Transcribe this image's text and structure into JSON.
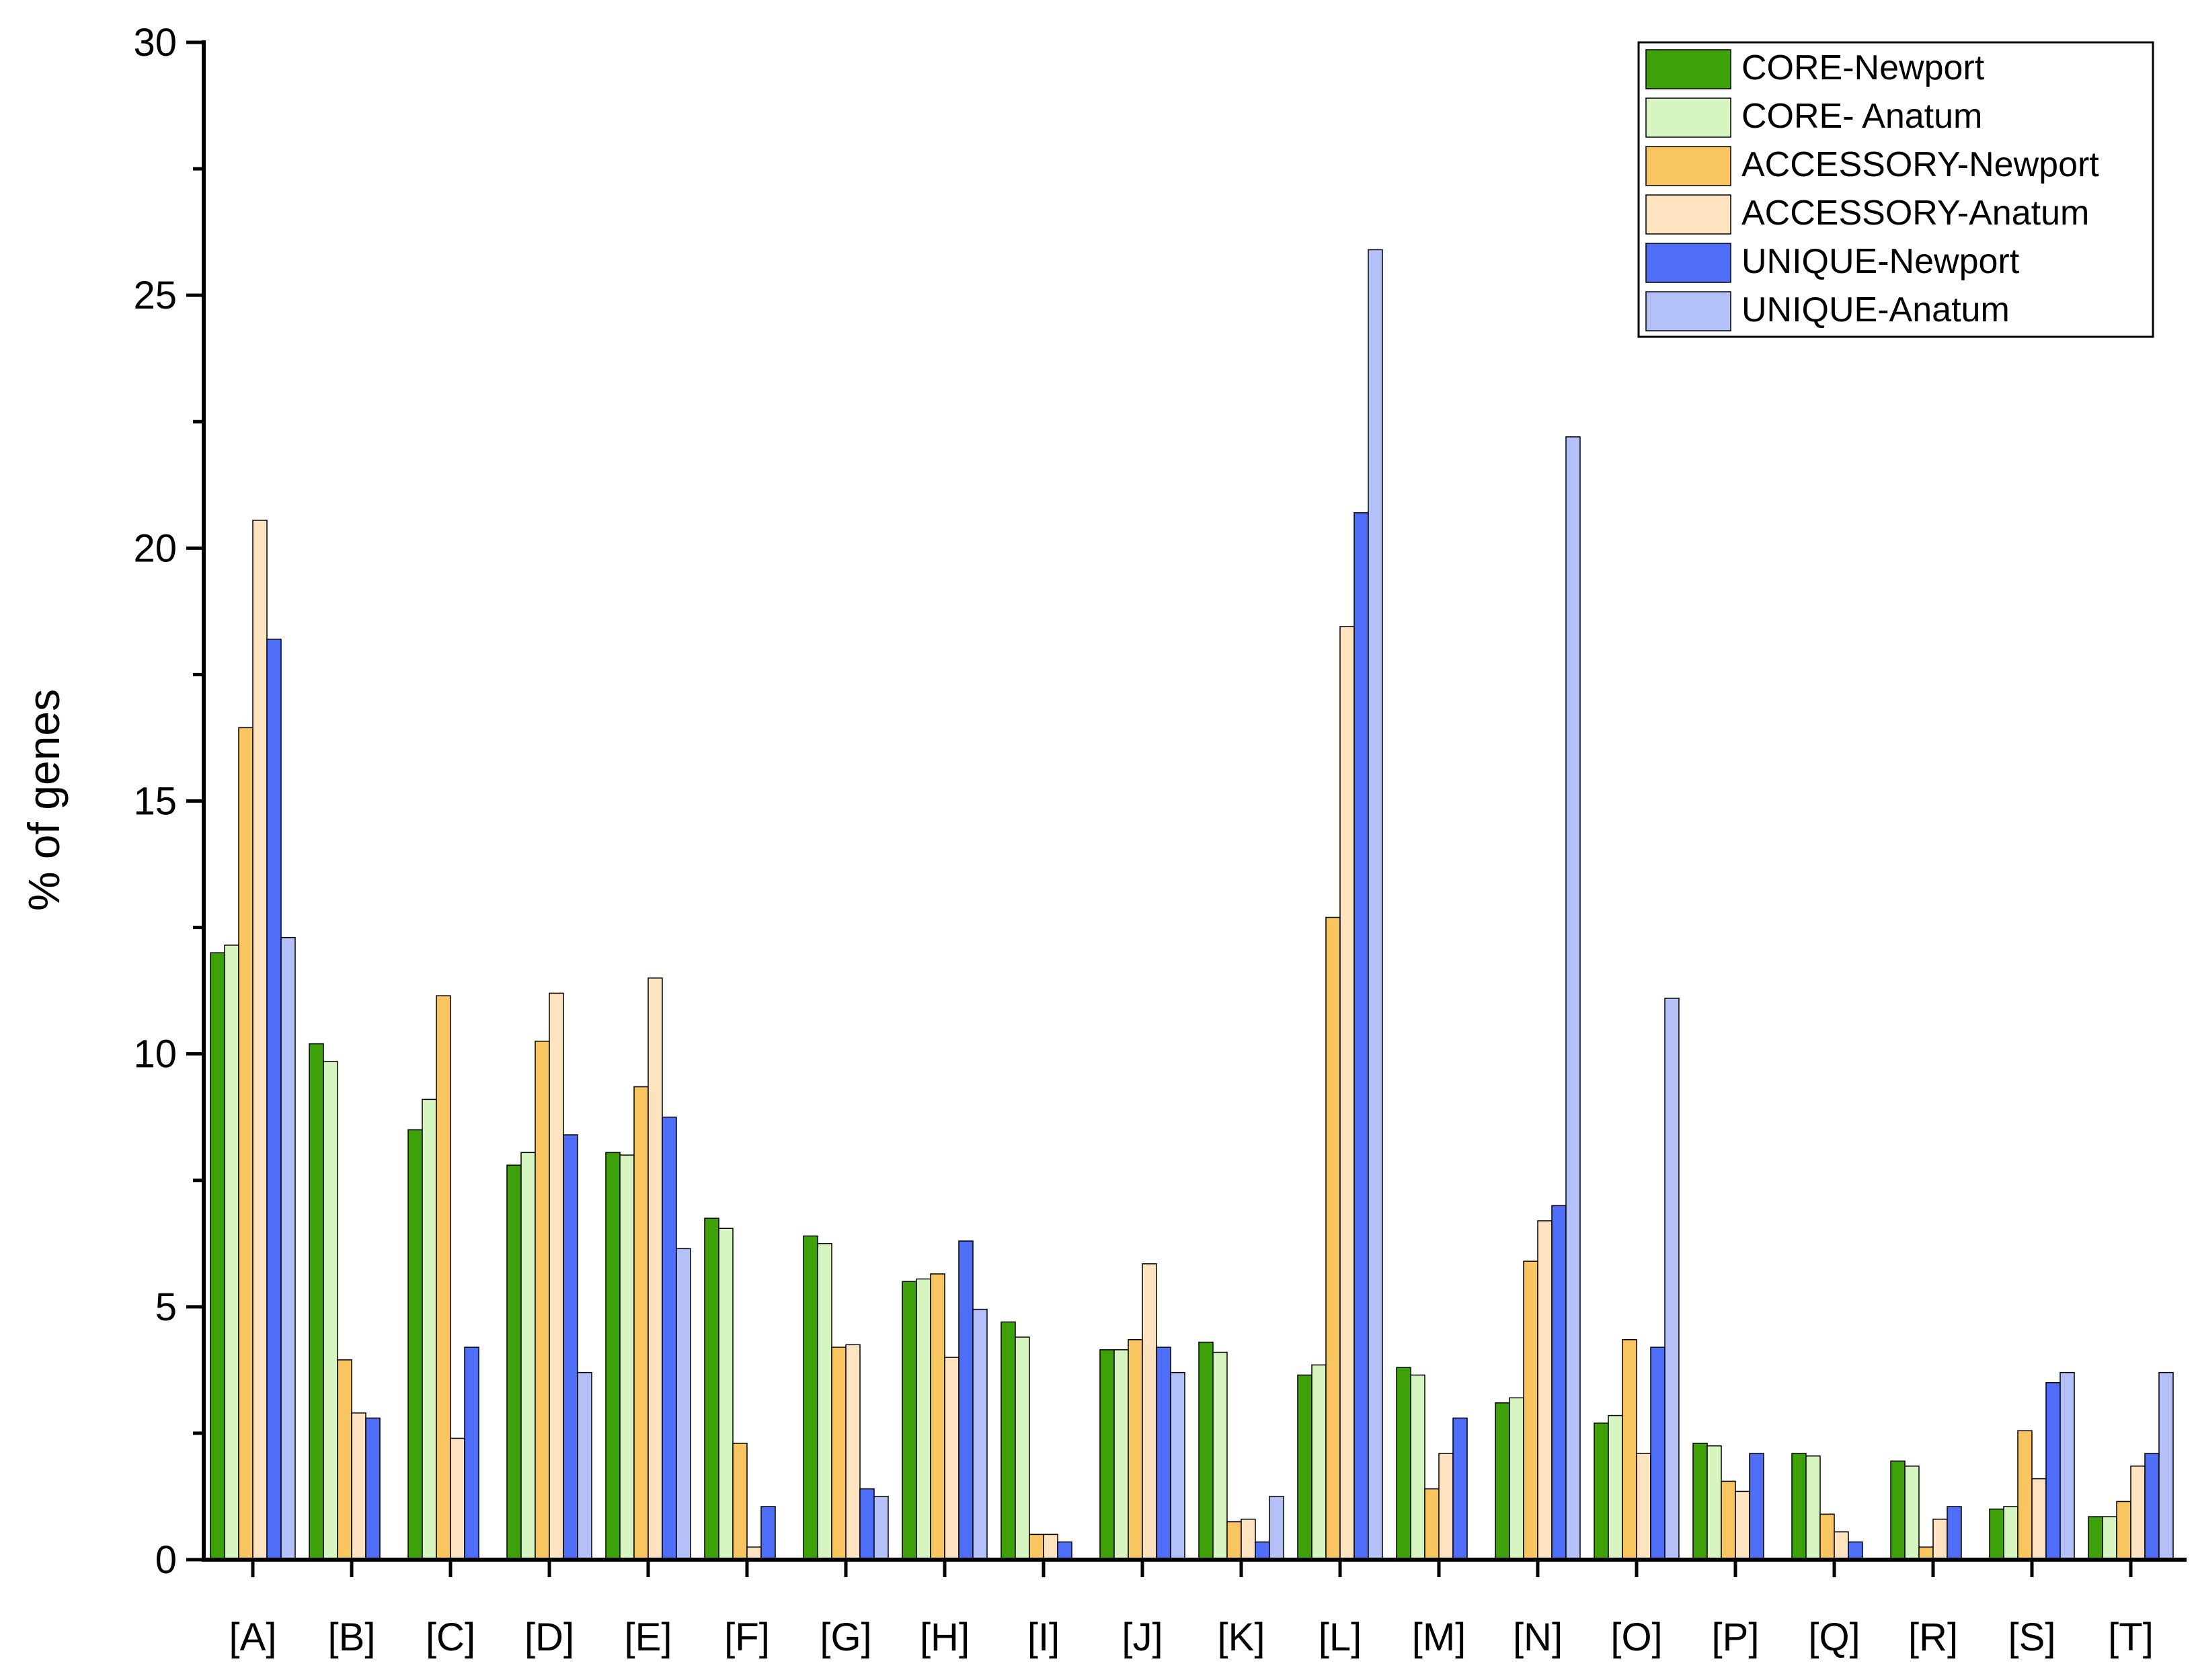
{
  "chart_data": {
    "type": "bar",
    "title": "",
    "xlabel": "",
    "ylabel": "% of genes",
    "ylim": [
      0,
      30
    ],
    "yticks": [
      "0",
      "5",
      "10",
      "15",
      "20",
      "25",
      "30"
    ],
    "grid": false,
    "legend_position": "top-right",
    "categories": [
      "[A]",
      "[B]",
      "[C]",
      "[D]",
      "[E]",
      "[F]",
      "[G]",
      "[H]",
      "[I]",
      "[J]",
      "[K]",
      "[L]",
      "[M]",
      "[N]",
      "[O]",
      "[P]",
      "[Q]",
      "[R]",
      "[S]",
      "[T]"
    ],
    "series": [
      {
        "name": "CORE-Newport",
        "color": "#3fa10a",
        "values": [
          12.0,
          10.2,
          8.5,
          7.8,
          8.05,
          6.75,
          6.4,
          5.5,
          4.7,
          4.15,
          4.3,
          3.65,
          3.8,
          3.1,
          2.7,
          2.3,
          2.1,
          1.95,
          1.0,
          0.85
        ]
      },
      {
        "name": "CORE- Anatum",
        "color": "#d6f5c0",
        "values": [
          12.15,
          9.85,
          9.1,
          8.05,
          8.0,
          6.55,
          6.25,
          5.55,
          4.4,
          4.15,
          4.1,
          3.85,
          3.65,
          3.2,
          2.85,
          2.25,
          2.05,
          1.85,
          1.05,
          0.85
        ]
      },
      {
        "name": "ACCESSORY-Newport",
        "color": "#f8c560",
        "values": [
          16.45,
          3.95,
          11.15,
          10.25,
          9.35,
          2.3,
          4.2,
          5.65,
          0.5,
          4.35,
          0.75,
          12.7,
          1.4,
          5.9,
          4.35,
          1.55,
          0.9,
          0.25,
          2.55,
          1.15
        ]
      },
      {
        "name": "ACCESSORY-Anatum",
        "color": "#fde3bf",
        "values": [
          20.55,
          2.9,
          2.4,
          11.2,
          11.5,
          0.25,
          4.25,
          4.0,
          0.5,
          5.85,
          0.8,
          18.45,
          2.1,
          6.7,
          2.1,
          1.35,
          0.55,
          0.8,
          1.6,
          1.85
        ]
      },
      {
        "name": "UNIQUE-Newport",
        "color": "#4f6ef7",
        "values": [
          18.2,
          2.8,
          4.2,
          8.4,
          8.75,
          1.05,
          1.4,
          6.3,
          0.35,
          4.2,
          0.35,
          20.7,
          2.8,
          7.0,
          4.2,
          2.1,
          0.35,
          1.05,
          3.5,
          2.1
        ]
      },
      {
        "name": "UNIQUE-Anatum",
        "color": "#b4c1f9",
        "values": [
          12.3,
          0,
          0,
          3.7,
          6.15,
          0,
          1.25,
          4.95,
          0,
          3.7,
          1.25,
          25.9,
          0,
          22.2,
          11.1,
          0,
          0,
          0,
          3.7,
          3.7
        ]
      }
    ]
  }
}
